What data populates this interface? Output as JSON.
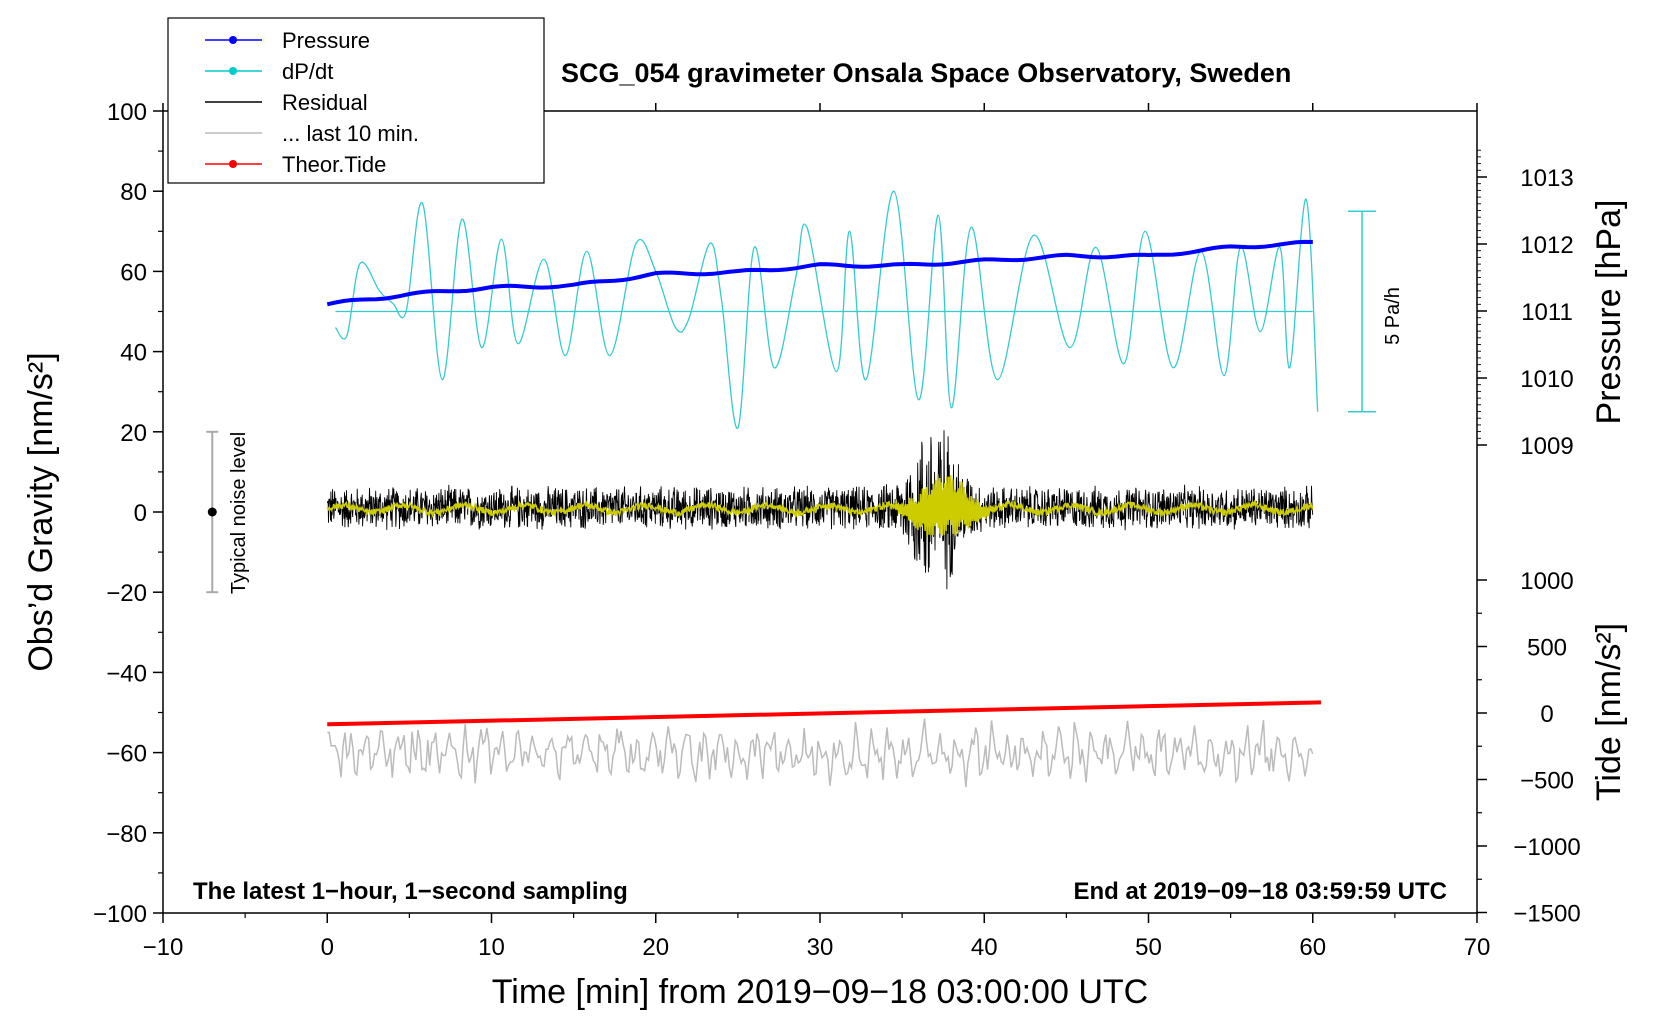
{
  "chart_data": {
    "type": "line",
    "title": "SCG_054 gravimeter Onsala Space Observatory, Sweden",
    "xlabel": "Time [min] from 2019−09−18 03:00:00 UTC",
    "ylabel_left": "Obs’d Gravity [nm/s²]",
    "ylabel_right_top": "Pressure [hPa]",
    "ylabel_right_bottom": "Tide [nm/s²]",
    "xlim": [
      -10,
      70
    ],
    "ylim": [
      -100,
      100
    ],
    "x_ticks": [
      "−10",
      "0",
      "10",
      "20",
      "30",
      "40",
      "50",
      "60",
      "70"
    ],
    "y_ticks": [
      "100",
      "80",
      "60",
      "40",
      "20",
      "0",
      "−20",
      "−40",
      "−60",
      "−80",
      "−100"
    ],
    "pressure_ticks": [
      "1013",
      "1012",
      "1011",
      "1010",
      "1009"
    ],
    "tide_ticks": [
      "1000",
      "500",
      "0",
      "−500",
      "−1000",
      "−1500"
    ],
    "note_left": "The latest 1−hour, 1−second sampling",
    "note_right": "End at 2019−09−18 03:59:59 UTC",
    "noise_label": "Typical noise level",
    "dpdt_scale_label": "5 Pa/h",
    "legend": [
      {
        "label": "Pressure",
        "color": "#0000ff",
        "marker": true
      },
      {
        "label": "dP/dt",
        "color": "#00cccc",
        "marker": true
      },
      {
        "label": "Residual",
        "color": "#000000",
        "marker": false
      },
      {
        "label": "... last 10 min.",
        "color": "#bbbbbb",
        "marker": false
      },
      {
        "label": "Theor.Tide",
        "color": "#ff0000",
        "marker": true
      }
    ],
    "series": [
      {
        "name": "Pressure",
        "axis": "pressure_hPa",
        "color": "#0000ff",
        "x": [
          0,
          5,
          10,
          15,
          20,
          25,
          30,
          35,
          40,
          45,
          50,
          55,
          60
        ],
        "values": [
          1011.1,
          1011.25,
          1011.35,
          1011.38,
          1011.55,
          1011.58,
          1011.68,
          1011.68,
          1011.75,
          1011.82,
          1011.82,
          1011.95,
          1012.02
        ]
      },
      {
        "name": "dP/dt",
        "axis": "gravity_scaled",
        "color": "#00cccc",
        "baseline": 50,
        "x": [
          0.5,
          1.2,
          2.0,
          3.2,
          4.0,
          4.8,
          5.8,
          7.0,
          8.2,
          9.4,
          10.6,
          11.6,
          13.2,
          14.5,
          15.8,
          17.2,
          18.8,
          20.0,
          21.2,
          22.0,
          23.3,
          24.0,
          25.0,
          26.0,
          27.2,
          28.5,
          29.2,
          31.0,
          31.8,
          32.8,
          34.5,
          36.0,
          37.2,
          38.0,
          39.2,
          40.8,
          43.0,
          45.2,
          46.8,
          48.5,
          49.8,
          51.5,
          53.2,
          54.6,
          55.6,
          56.8,
          58.0,
          58.6,
          59.6,
          60.3
        ],
        "values": [
          46,
          44,
          62,
          55,
          52,
          50,
          77,
          33,
          73,
          41,
          68,
          42,
          63,
          39,
          65,
          39,
          67,
          60,
          46,
          48,
          67,
          53,
          21,
          66,
          36,
          58,
          71,
          35,
          70,
          33,
          80,
          28,
          74,
          26,
          71,
          33,
          69,
          41,
          66,
          37,
          70,
          36,
          65,
          34,
          66,
          45,
          66,
          36,
          78,
          25
        ]
      },
      {
        "name": "Residual",
        "color": "#000000",
        "x": [
          0,
          60
        ],
        "amplitude": 6,
        "burst_center": 37,
        "burst_amplitude": 20
      },
      {
        "name": "Residual (smoothed)",
        "color": "#cccc00",
        "x": [
          0,
          60
        ],
        "burst_center": 37.5,
        "burst_amplitude": 8
      },
      {
        "name": "Theor.Tide",
        "axis": "tide_nm_s2",
        "color": "#ff0000",
        "x": [
          0,
          60.5
        ],
        "values": [
          -85,
          80
        ]
      },
      {
        "name": "... last 10 min.",
        "color": "#bbbbbb",
        "x": [
          0,
          60
        ],
        "offset": -60,
        "amplitude": 6
      }
    ],
    "noise_bar": {
      "x": -7,
      "center": 0,
      "low": -20,
      "high": 20
    },
    "dpdt_scale_bar": {
      "x": 63.0,
      "low": 25,
      "high": 75
    }
  }
}
